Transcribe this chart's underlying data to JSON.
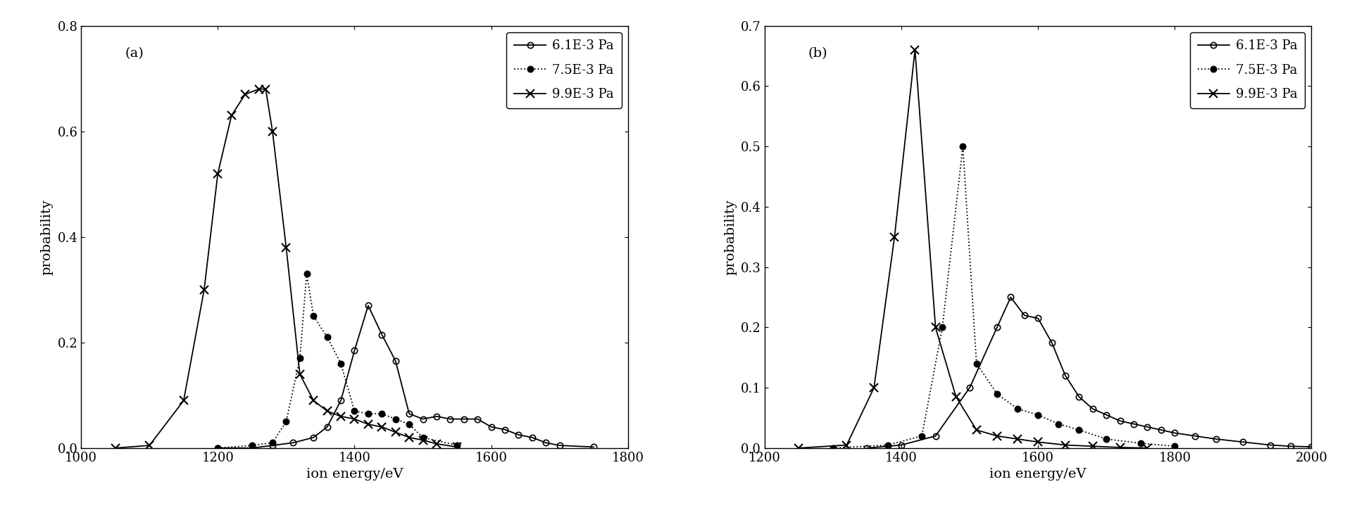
{
  "panel_a": {
    "label": "(a)",
    "xlabel": "ion energy/eV",
    "ylabel": "probability",
    "xlim": [
      1000,
      1800
    ],
    "ylim": [
      0,
      0.8
    ],
    "yticks": [
      0,
      0.2,
      0.4,
      0.6,
      0.8
    ],
    "xticks": [
      1000,
      1200,
      1400,
      1600,
      1800
    ],
    "series": [
      {
        "label": "6.1E-3 Pa",
        "marker": "o",
        "fillstyle": "none",
        "linestyle": "-",
        "x": [
          1200,
          1250,
          1280,
          1310,
          1340,
          1360,
          1380,
          1400,
          1420,
          1440,
          1460,
          1480,
          1500,
          1520,
          1540,
          1560,
          1580,
          1600,
          1620,
          1640,
          1660,
          1680,
          1700,
          1750
        ],
        "y": [
          0.0,
          0.0,
          0.005,
          0.01,
          0.02,
          0.04,
          0.09,
          0.185,
          0.27,
          0.215,
          0.165,
          0.065,
          0.055,
          0.06,
          0.055,
          0.055,
          0.055,
          0.04,
          0.035,
          0.025,
          0.02,
          0.01,
          0.005,
          0.002
        ]
      },
      {
        "label": "7.5E-3 Pa",
        "marker": "o",
        "fillstyle": "full",
        "linestyle": ":",
        "x": [
          1200,
          1250,
          1280,
          1300,
          1320,
          1330,
          1340,
          1360,
          1380,
          1400,
          1420,
          1440,
          1460,
          1480,
          1500,
          1550
        ],
        "y": [
          0.0,
          0.005,
          0.01,
          0.05,
          0.17,
          0.33,
          0.25,
          0.21,
          0.16,
          0.07,
          0.065,
          0.065,
          0.055,
          0.045,
          0.02,
          0.005
        ]
      },
      {
        "label": "9.9E-3 Pa",
        "marker": "x",
        "fillstyle": "full",
        "linestyle": "-",
        "x": [
          1050,
          1100,
          1150,
          1180,
          1200,
          1220,
          1240,
          1260,
          1270,
          1280,
          1300,
          1320,
          1340,
          1360,
          1380,
          1400,
          1420,
          1440,
          1460,
          1480,
          1500,
          1520,
          1550
        ],
        "y": [
          0.0,
          0.005,
          0.09,
          0.3,
          0.52,
          0.63,
          0.67,
          0.68,
          0.68,
          0.6,
          0.38,
          0.14,
          0.09,
          0.07,
          0.06,
          0.055,
          0.045,
          0.04,
          0.03,
          0.02,
          0.015,
          0.008,
          0.002
        ]
      }
    ]
  },
  "panel_b": {
    "label": "(b)",
    "xlabel": "ion energy/eV",
    "ylabel": "probability",
    "xlim": [
      1200,
      2000
    ],
    "ylim": [
      0,
      0.7
    ],
    "yticks": [
      0,
      0.1,
      0.2,
      0.3,
      0.4,
      0.5,
      0.6,
      0.7
    ],
    "xticks": [
      1200,
      1400,
      1600,
      1800,
      2000
    ],
    "series": [
      {
        "label": "6.1E-3 Pa",
        "marker": "o",
        "fillstyle": "none",
        "linestyle": "-",
        "x": [
          1350,
          1400,
          1450,
          1500,
          1540,
          1560,
          1580,
          1600,
          1620,
          1640,
          1660,
          1680,
          1700,
          1720,
          1740,
          1760,
          1780,
          1800,
          1830,
          1860,
          1900,
          1940,
          1970,
          2000
        ],
        "y": [
          0.0,
          0.005,
          0.02,
          0.1,
          0.2,
          0.25,
          0.22,
          0.215,
          0.175,
          0.12,
          0.085,
          0.065,
          0.055,
          0.045,
          0.04,
          0.035,
          0.03,
          0.025,
          0.02,
          0.015,
          0.01,
          0.005,
          0.003,
          0.002
        ]
      },
      {
        "label": "7.5E-3 Pa",
        "marker": "o",
        "fillstyle": "full",
        "linestyle": ":",
        "x": [
          1300,
          1380,
          1430,
          1460,
          1490,
          1510,
          1540,
          1570,
          1600,
          1630,
          1660,
          1700,
          1750,
          1800
        ],
        "y": [
          0.0,
          0.005,
          0.02,
          0.2,
          0.5,
          0.14,
          0.09,
          0.065,
          0.055,
          0.04,
          0.03,
          0.015,
          0.008,
          0.003
        ]
      },
      {
        "label": "9.9E-3 Pa",
        "marker": "x",
        "fillstyle": "full",
        "linestyle": "-",
        "x": [
          1250,
          1320,
          1360,
          1390,
          1420,
          1450,
          1480,
          1510,
          1540,
          1570,
          1600,
          1640,
          1680,
          1720,
          1760
        ],
        "y": [
          0.0,
          0.005,
          0.1,
          0.35,
          0.66,
          0.2,
          0.085,
          0.03,
          0.02,
          0.015,
          0.01,
          0.005,
          0.003,
          0.001,
          0.0
        ]
      }
    ]
  },
  "background_color": "white",
  "line_color": "black",
  "fontsize": 14,
  "label_fontsize": 14,
  "tick_fontsize": 13,
  "legend_fontsize": 13
}
